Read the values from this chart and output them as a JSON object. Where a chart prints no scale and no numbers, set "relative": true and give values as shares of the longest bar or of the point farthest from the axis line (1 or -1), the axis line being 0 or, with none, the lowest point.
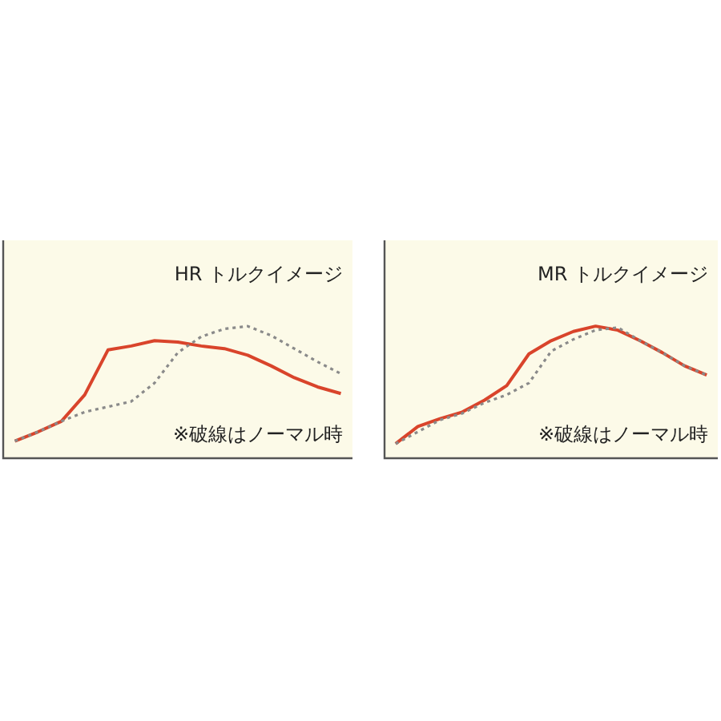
{
  "chart_data": [
    {
      "type": "line",
      "title": "HR トルクイメージ",
      "relative": true,
      "marker": "none",
      "categories": [
        null,
        null,
        null,
        null,
        null,
        null,
        null,
        null,
        null,
        null,
        null,
        null,
        null,
        null,
        null
      ],
      "series": [
        {
          "color": "#d9442b",
          "line_style": "solid",
          "values": [
            0.13,
            0.2,
            0.28,
            0.48,
            0.82,
            0.85,
            0.89,
            0.88,
            0.85,
            0.83,
            0.78,
            0.7,
            0.61,
            0.54,
            0.49
          ]
        },
        {
          "color": "#8a8a8a",
          "line_style": "dotted",
          "values": [
            0.13,
            0.2,
            0.28,
            0.35,
            0.39,
            0.43,
            0.57,
            0.8,
            0.92,
            0.98,
            1.0,
            0.93,
            0.83,
            0.73,
            0.64
          ]
        }
      ],
      "annotations": [
        "※破線はノーマル時"
      ]
    },
    {
      "type": "line",
      "title": "MR トルクイメージ",
      "relative": true,
      "marker": "none",
      "categories": [
        null,
        null,
        null,
        null,
        null,
        null,
        null,
        null,
        null,
        null,
        null,
        null,
        null,
        null,
        null
      ],
      "series": [
        {
          "color": "#d9442b",
          "line_style": "solid",
          "values": [
            0.11,
            0.24,
            0.3,
            0.35,
            0.44,
            0.55,
            0.79,
            0.89,
            0.96,
            1.0,
            0.97,
            0.89,
            0.8,
            0.7,
            0.63
          ]
        },
        {
          "color": "#8a8a8a",
          "line_style": "dotted",
          "values": [
            0.11,
            0.2,
            0.29,
            0.34,
            0.42,
            0.48,
            0.57,
            0.81,
            0.9,
            0.97,
            0.99,
            0.89,
            0.8,
            0.7,
            0.63
          ]
        }
      ],
      "annotations": [
        "※破線はノーマル時"
      ]
    }
  ]
}
